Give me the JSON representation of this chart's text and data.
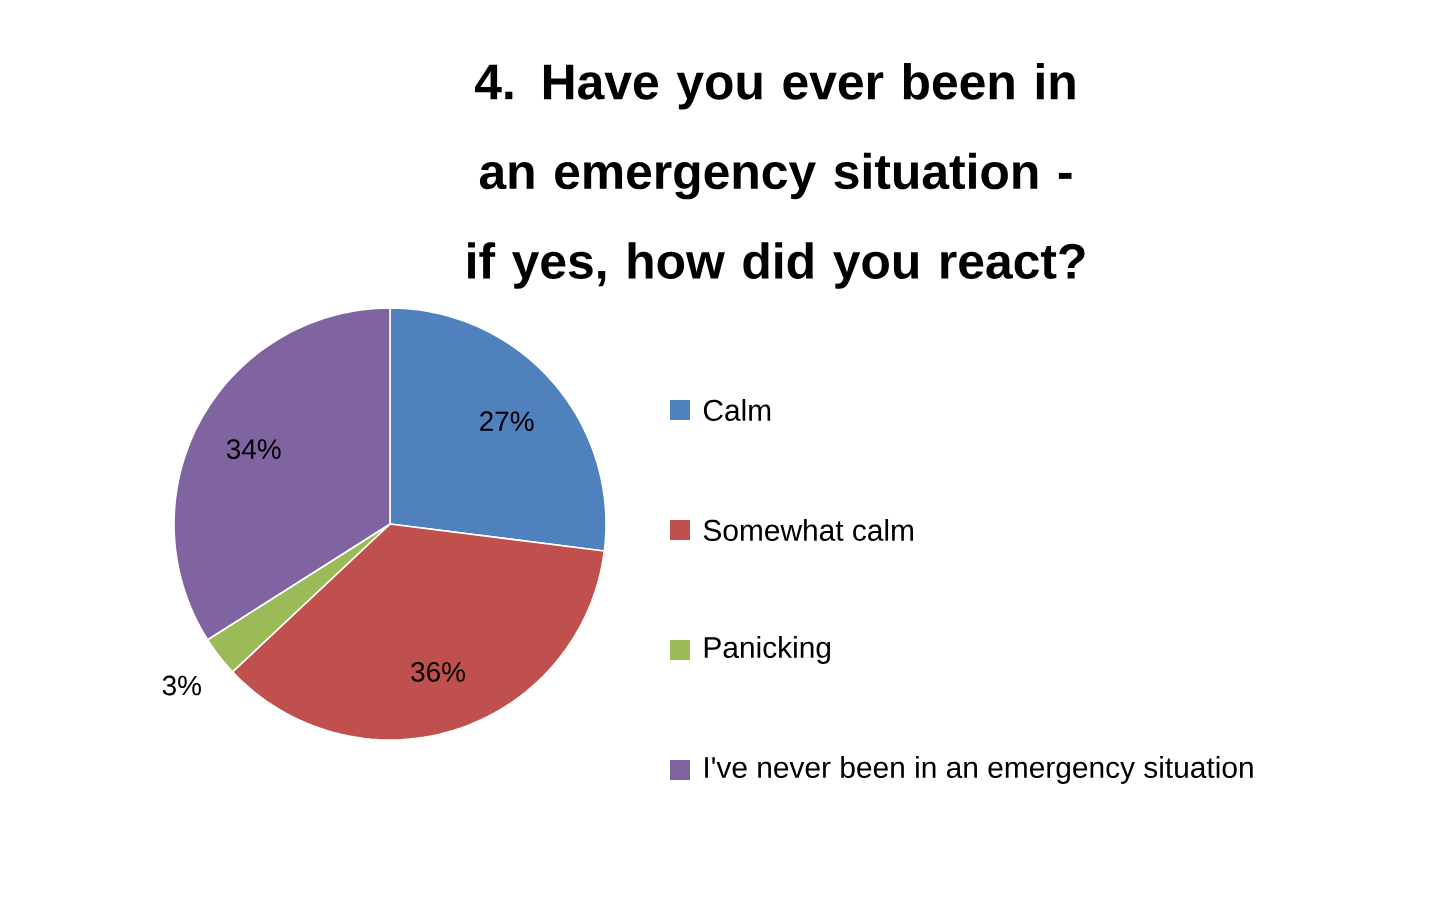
{
  "chart_data": {
    "type": "pie",
    "title": "4. Have you ever been in an emergency situation - if yes, how did you react?",
    "categories": [
      "Calm",
      "Somewhat calm",
      "Panicking",
      "I've never been in an emergency situation"
    ],
    "values": [
      27,
      36,
      3,
      34
    ],
    "colors": [
      "#4f81bd",
      "#c0504d",
      "#9bbb59",
      "#8064a2"
    ],
    "value_labels": [
      "27%",
      "36%",
      "3%",
      "34%"
    ],
    "legend": "right"
  }
}
